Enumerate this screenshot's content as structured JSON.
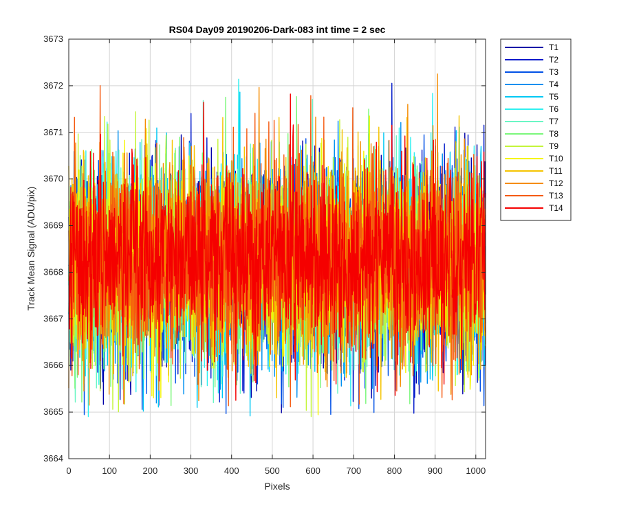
{
  "chart_data": {
    "type": "line",
    "title": "RS04 Day09 20190206-Dark-083 int time = 2 sec",
    "xlabel": "Pixels",
    "ylabel": "Track Mean Signal (ADU/pix)",
    "xlim": [
      0,
      1024
    ],
    "ylim": [
      3664,
      3673
    ],
    "xticks": [
      0,
      100,
      200,
      300,
      400,
      500,
      600,
      700,
      800,
      900,
      1000
    ],
    "yticks": [
      3664,
      3665,
      3666,
      3667,
      3668,
      3669,
      3670,
      3671,
      3672,
      3673
    ],
    "grid": true,
    "legend_location": "outside-top-right",
    "noise_model": {
      "n_points": 1024,
      "center": 3668.2,
      "sd": 1.05
    },
    "series": [
      {
        "name": "T1",
        "color": "#0000a8"
      },
      {
        "name": "T2",
        "color": "#0019ca"
      },
      {
        "name": "T3",
        "color": "#0050e6"
      },
      {
        "name": "T4",
        "color": "#0090f0"
      },
      {
        "name": "T5",
        "color": "#00c8f4"
      },
      {
        "name": "T6",
        "color": "#2ef0f0"
      },
      {
        "name": "T7",
        "color": "#6af6c4"
      },
      {
        "name": "T8",
        "color": "#7af77a"
      },
      {
        "name": "T9",
        "color": "#c4f53a"
      },
      {
        "name": "T10",
        "color": "#f5f500"
      },
      {
        "name": "T11",
        "color": "#f5c400"
      },
      {
        "name": "T12",
        "color": "#f58c00"
      },
      {
        "name": "T13",
        "color": "#f55a10"
      },
      {
        "name": "T14",
        "color": "#f50000"
      }
    ]
  }
}
